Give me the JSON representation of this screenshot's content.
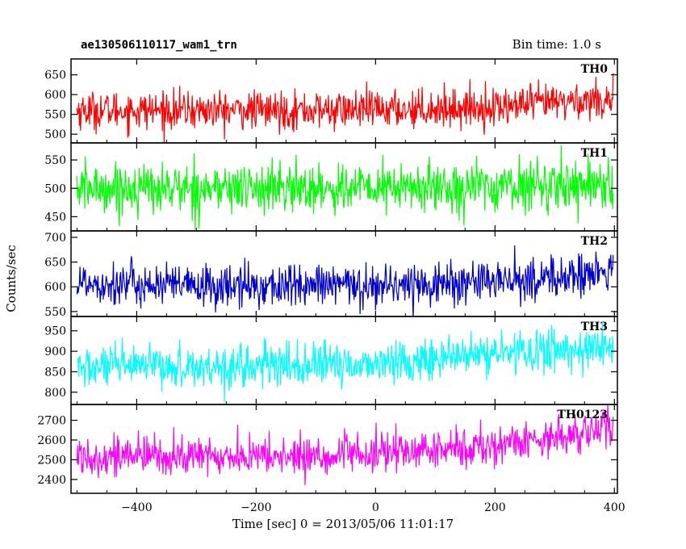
{
  "chart_data": {
    "type": "line",
    "title": "ae130506110117_wam1_trn",
    "subtitle": "Bin time: 1.0 s",
    "xlabel": "Time [sec] 0 = 2013/05/06 11:01:17",
    "ylabel": "Counts/sec",
    "xlim": [
      -510,
      405
    ],
    "x_start": -500,
    "x_end": 398,
    "x_step": 1,
    "xticks": [
      -400,
      -200,
      0,
      200,
      400
    ],
    "xtick_labels": [
      "−400",
      "−200",
      "0",
      "200",
      "400"
    ],
    "panels": [
      {
        "name": "TH0",
        "color": "#ff0000",
        "ylim": [
          478,
          690
        ],
        "yticks": [
          500,
          550,
          600,
          650
        ],
        "ytick_labels": [
          "500",
          "550",
          "600",
          "650"
        ],
        "trend": [
          [
            -500,
            560
          ],
          [
            -100,
            560
          ],
          [
            0,
            562
          ],
          [
            200,
            568
          ],
          [
            300,
            580
          ],
          [
            400,
            590
          ]
        ],
        "noise": 24
      },
      {
        "name": "TH1",
        "color": "#00ff00",
        "ylim": [
          425,
          580
        ],
        "yticks": [
          450,
          500,
          550
        ],
        "ytick_labels": [
          "450",
          "500",
          "550"
        ],
        "trend": [
          [
            -500,
            500
          ],
          [
            0,
            500
          ],
          [
            200,
            503
          ],
          [
            400,
            510
          ]
        ],
        "noise": 22
      },
      {
        "name": "TH2",
        "color": "#0000cc",
        "ylim": [
          540,
          713
        ],
        "yticks": [
          550,
          600,
          650,
          700
        ],
        "ytick_labels": [
          "550",
          "600",
          "650",
          "700"
        ],
        "trend": [
          [
            -500,
            610
          ],
          [
            -300,
            600
          ],
          [
            0,
            603
          ],
          [
            200,
            610
          ],
          [
            300,
            618
          ],
          [
            400,
            630
          ]
        ],
        "noise": 22
      },
      {
        "name": "TH3",
        "color": "#00ffff",
        "ylim": [
          770,
          985
        ],
        "yticks": [
          800,
          850,
          900,
          950
        ],
        "ytick_labels": [
          "800",
          "850",
          "900",
          "950"
        ],
        "trend": [
          [
            -500,
            860
          ],
          [
            -100,
            865
          ],
          [
            0,
            870
          ],
          [
            100,
            880
          ],
          [
            200,
            895
          ],
          [
            400,
            910
          ]
        ],
        "noise": 26
      },
      {
        "name": "TH0123",
        "color": "#ff00ff",
        "ylim": [
          2330,
          2780
        ],
        "yticks": [
          2400,
          2500,
          2600,
          2700
        ],
        "ytick_labels": [
          "2400",
          "2500",
          "2600",
          "2700"
        ],
        "trend": [
          [
            -500,
            2520
          ],
          [
            -100,
            2515
          ],
          [
            0,
            2530
          ],
          [
            200,
            2570
          ],
          [
            300,
            2620
          ],
          [
            400,
            2660
          ]
        ],
        "noise": 50
      }
    ]
  }
}
